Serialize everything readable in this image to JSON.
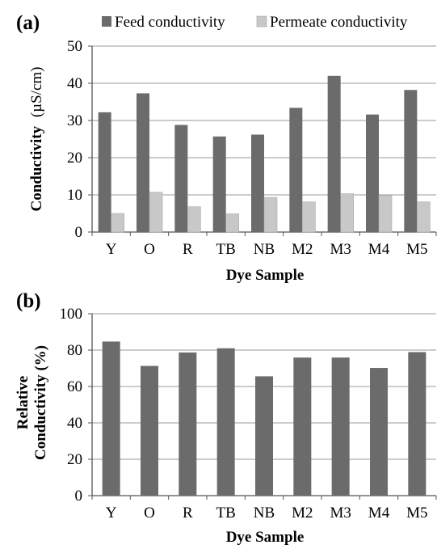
{
  "chart_data": [
    {
      "panel_label": "(a)",
      "type": "bar",
      "categories": [
        "Y",
        "O",
        "R",
        "TB",
        "NB",
        "M2",
        "M3",
        "M4",
        "M5"
      ],
      "series": [
        {
          "name": "Feed conductivity",
          "color": "#6b6b6b",
          "values": [
            32.2,
            37.3,
            28.8,
            25.7,
            26.2,
            33.4,
            42.0,
            31.6,
            38.2
          ]
        },
        {
          "name": "Permeate conductivity",
          "color": "#c8c8c8",
          "values": [
            5.0,
            10.7,
            6.8,
            4.9,
            9.3,
            8.1,
            10.3,
            9.8,
            8.1
          ]
        }
      ],
      "ylim": [
        0,
        50
      ],
      "yticks": [
        "0",
        "10",
        "20",
        "30",
        "40",
        "50"
      ],
      "ytick_values": [
        0,
        10,
        20,
        30,
        40,
        50
      ],
      "ylabel_main": "Conductivity",
      "ylabel_unit": "(µS/cm)",
      "xlabel": "Dye Sample",
      "grid": "horizontal",
      "legend_position": "top"
    },
    {
      "panel_label": "(b)",
      "type": "bar",
      "categories": [
        "Y",
        "O",
        "R",
        "TB",
        "NB",
        "M2",
        "M3",
        "M4",
        "M5"
      ],
      "series": [
        {
          "color": "#6b6b6b",
          "values": [
            84.7,
            71.3,
            78.7,
            81.0,
            65.6,
            75.9,
            75.9,
            70.2,
            78.9
          ]
        }
      ],
      "ylim": [
        0,
        100
      ],
      "yticks": [
        "0",
        "20",
        "40",
        "60",
        "80",
        "100"
      ],
      "ytick_values": [
        0,
        20,
        40,
        60,
        80,
        100
      ],
      "ylabel_line1": "Relative",
      "ylabel_line2": "Conductivity (%)",
      "xlabel": "Dye Sample",
      "grid": "horizontal",
      "legend_position": "none"
    }
  ]
}
